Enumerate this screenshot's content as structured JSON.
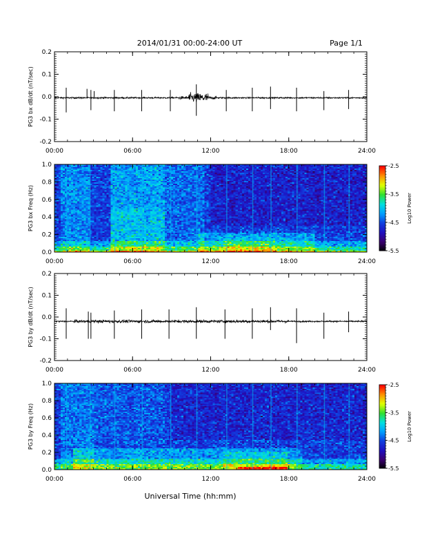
{
  "header": {
    "title": "2014/01/31  00:00-24:00 UT",
    "page": "Page 1/1"
  },
  "footer": {
    "xlabel": "Universal Time (hh:mm)"
  },
  "colors": {
    "trace": "#000000",
    "colormap": [
      "#000000",
      "#3a0070",
      "#2010c0",
      "#1040e0",
      "#00a0ff",
      "#00e0e0",
      "#30e030",
      "#e0ff00",
      "#ff9000",
      "#ff0000"
    ]
  },
  "chart_data": [
    {
      "id": "p1",
      "type": "line",
      "ylabel": "PG3 bx dB/dt (nT/sec)",
      "xlim": [
        0,
        24
      ],
      "ylim": [
        -0.2,
        0.2
      ],
      "xticks": [
        "00:00",
        "06:00",
        "12:00",
        "18:00",
        "24:00"
      ],
      "yticks": [
        "0.2",
        "0.1",
        "0.0",
        "-0.1",
        "-0.2"
      ],
      "series": [
        {
          "baseline": -0.005,
          "spikes": [
            {
              "t": 0.9,
              "up": 0.04,
              "down": -0.07
            },
            {
              "t": 2.5,
              "up": 0.035,
              "down": -0.005
            },
            {
              "t": 2.8,
              "up": 0.03,
              "down": -0.06
            },
            {
              "t": 3.05,
              "up": 0.025,
              "down": -0.005
            },
            {
              "t": 4.6,
              "up": 0.03,
              "down": -0.065
            },
            {
              "t": 6.7,
              "up": 0.03,
              "down": -0.065
            },
            {
              "t": 8.9,
              "up": 0.03,
              "down": -0.065
            },
            {
              "t": 10.9,
              "up": 0.055,
              "down": -0.085
            },
            {
              "t": 13.2,
              "up": 0.03,
              "down": -0.065
            },
            {
              "t": 15.2,
              "up": 0.04,
              "down": -0.065
            },
            {
              "t": 16.6,
              "up": 0.045,
              "down": -0.055
            },
            {
              "t": 18.6,
              "up": 0.04,
              "down": -0.065
            },
            {
              "t": 20.7,
              "up": 0.025,
              "down": -0.06
            },
            {
              "t": 22.6,
              "up": 0.03,
              "down": -0.055
            }
          ],
          "active_period": [
            9.5,
            12.5
          ]
        }
      ]
    },
    {
      "id": "p2",
      "type": "heatmap",
      "ylabel": "PG3 bx Freq (Hz)",
      "colorbar_label": "Log10 Power",
      "xlim": [
        0,
        24
      ],
      "ylim": [
        0.0,
        1.0
      ],
      "clim": [
        -5.5,
        -2.5
      ],
      "xticks": [
        "00:00",
        "06:00",
        "12:00",
        "18:00",
        "24:00"
      ],
      "yticks": [
        "1.0",
        "0.8",
        "0.6",
        "0.4",
        "0.2",
        "0.0"
      ],
      "cbticks": [
        "-2.5",
        "-3.5",
        "-4.5",
        "-5.5"
      ]
    },
    {
      "id": "p3",
      "type": "line",
      "ylabel": "PG3 by dB/dt (nT/sec)",
      "xlim": [
        0,
        24
      ],
      "ylim": [
        -0.2,
        0.2
      ],
      "xticks": [
        "00:00",
        "06:00",
        "12:00",
        "18:00",
        "24:00"
      ],
      "yticks": [
        "0.2",
        "0.1",
        "0.0",
        "-0.1",
        "-0.2"
      ],
      "series": [
        {
          "baseline": -0.02,
          "spikes": [
            {
              "t": 0.9,
              "up": 0.04,
              "down": -0.1
            },
            {
              "t": 2.6,
              "up": 0.025,
              "down": -0.1
            },
            {
              "t": 2.8,
              "up": 0.02,
              "down": -0.1
            },
            {
              "t": 4.6,
              "up": 0.03,
              "down": -0.1
            },
            {
              "t": 6.7,
              "up": 0.035,
              "down": -0.1
            },
            {
              "t": 8.8,
              "up": 0.035,
              "down": -0.1
            },
            {
              "t": 10.9,
              "up": 0.045,
              "down": -0.1
            },
            {
              "t": 13.1,
              "up": 0.035,
              "down": -0.1
            },
            {
              "t": 15.2,
              "up": 0.04,
              "down": -0.1
            },
            {
              "t": 16.6,
              "up": 0.045,
              "down": -0.06
            },
            {
              "t": 18.6,
              "up": 0.04,
              "down": -0.12
            },
            {
              "t": 20.7,
              "up": 0.02,
              "down": -0.1
            },
            {
              "t": 22.6,
              "up": 0.025,
              "down": -0.07
            }
          ],
          "active_period": [
            1.5,
            18.0
          ]
        }
      ]
    },
    {
      "id": "p4",
      "type": "heatmap",
      "ylabel": "PG3 by Freq (Hz)",
      "colorbar_label": "Log10 Power",
      "xlim": [
        0,
        24
      ],
      "ylim": [
        0.0,
        1.0
      ],
      "clim": [
        -5.5,
        -2.5
      ],
      "xticks": [
        "00:00",
        "06:00",
        "12:00",
        "18:00",
        "24:00"
      ],
      "yticks": [
        "1.0",
        "0.8",
        "0.6",
        "0.4",
        "0.2",
        "0.0"
      ],
      "cbticks": [
        "-2.5",
        "-3.5",
        "-4.5",
        "-5.5"
      ]
    }
  ]
}
